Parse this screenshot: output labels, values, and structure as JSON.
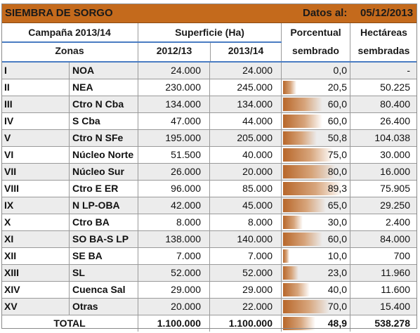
{
  "title": "SIEMBRA DE SORGO",
  "date_label": "Datos al:",
  "date_value": "05/12/2013",
  "headers": {
    "campaign": "Campaña 2013/14",
    "zones": "Zonas",
    "surface": "Superficie (Ha)",
    "year1": "2012/13",
    "year2": "2013/14",
    "pct_l1": "Porcentual",
    "pct_l2": "sembrado",
    "ha_l1": "Hectáreas",
    "ha_l2": "sembradas"
  },
  "rows": [
    {
      "num": "I",
      "zone": "NOA",
      "y1": "24.000",
      "y2": "24.000",
      "pct": "0,0",
      "pct_value": 0.0,
      "ha": "-"
    },
    {
      "num": "II",
      "zone": "NEA",
      "y1": "230.000",
      "y2": "245.000",
      "pct": "20,5",
      "pct_value": 20.5,
      "ha": "50.225"
    },
    {
      "num": "III",
      "zone": "Ctro N Cba",
      "y1": "134.000",
      "y2": "134.000",
      "pct": "60,0",
      "pct_value": 60.0,
      "ha": "80.400"
    },
    {
      "num": "IV",
      "zone": "S Cba",
      "y1": "47.000",
      "y2": "44.000",
      "pct": "60,0",
      "pct_value": 60.0,
      "ha": "26.400"
    },
    {
      "num": "V",
      "zone": "Ctro N SFe",
      "y1": "195.000",
      "y2": "205.000",
      "pct": "50,8",
      "pct_value": 50.8,
      "ha": "104.038"
    },
    {
      "num": "VI",
      "zone": "Núcleo Norte",
      "y1": "51.500",
      "y2": "40.000",
      "pct": "75,0",
      "pct_value": 75.0,
      "ha": "30.000"
    },
    {
      "num": "VII",
      "zone": "Núcleo Sur",
      "y1": "26.000",
      "y2": "20.000",
      "pct": "80,0",
      "pct_value": 80.0,
      "ha": "16.000"
    },
    {
      "num": "VIII",
      "zone": "Ctro E ER",
      "y1": "96.000",
      "y2": "85.000",
      "pct": "89,3",
      "pct_value": 89.3,
      "ha": "75.905"
    },
    {
      "num": "IX",
      "zone": "N LP-OBA",
      "y1": "42.000",
      "y2": "45.000",
      "pct": "65,0",
      "pct_value": 65.0,
      "ha": "29.250"
    },
    {
      "num": "X",
      "zone": "Ctro BA",
      "y1": "8.000",
      "y2": "8.000",
      "pct": "30,0",
      "pct_value": 30.0,
      "ha": "2.400"
    },
    {
      "num": "XI",
      "zone": "SO BA-S LP",
      "y1": "138.000",
      "y2": "140.000",
      "pct": "60,0",
      "pct_value": 60.0,
      "ha": "84.000"
    },
    {
      "num": "XII",
      "zone": "SE BA",
      "y1": "7.000",
      "y2": "7.000",
      "pct": "10,0",
      "pct_value": 10.0,
      "ha": "700"
    },
    {
      "num": "XIII",
      "zone": "SL",
      "y1": "52.000",
      "y2": "52.000",
      "pct": "23,0",
      "pct_value": 23.0,
      "ha": "11.960"
    },
    {
      "num": "XIV",
      "zone": "Cuenca Sal",
      "y1": "29.000",
      "y2": "29.000",
      "pct": "40,0",
      "pct_value": 40.0,
      "ha": "11.600"
    },
    {
      "num": "XV",
      "zone": "Otras",
      "y1": "20.000",
      "y2": "22.000",
      "pct": "70,0",
      "pct_value": 70.0,
      "ha": "15.400"
    }
  ],
  "total": {
    "label": "TOTAL",
    "y1": "1.100.000",
    "y2": "1.100.000",
    "pct": "48,9",
    "pct_value": 48.9,
    "ha": "538.278"
  },
  "colors": {
    "title_bg": "#c46a1c",
    "header_line": "#4a7cc2",
    "bar": "#b8672a"
  }
}
